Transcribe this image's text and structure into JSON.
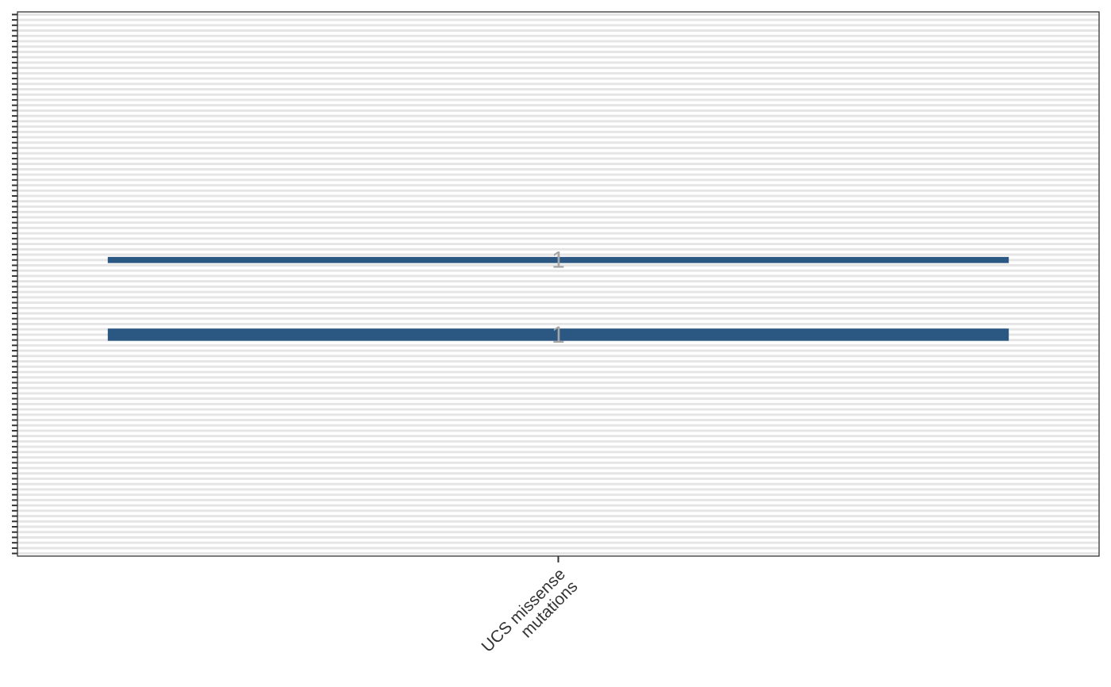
{
  "chart_data": {
    "type": "heatmap",
    "title": "",
    "xlabel": "",
    "ylabel": "",
    "categories": [
      "UCS missense\nmutations"
    ],
    "rows": 102,
    "filled_cells": [
      {
        "row": 46,
        "column": "UCS missense\nmutations",
        "value": 1,
        "label": "1"
      },
      {
        "row": 60,
        "column": "UCS missense\nmutations",
        "value": 1,
        "label": "1"
      }
    ],
    "grid": true,
    "legend": "none"
  },
  "colors": {
    "fill": "#2b5783",
    "grid_band": "#e5e5e5",
    "background": "#ffffff",
    "panel_border": "#333333",
    "cell_label": "#a6a6a6",
    "tick_label": "#333333"
  }
}
